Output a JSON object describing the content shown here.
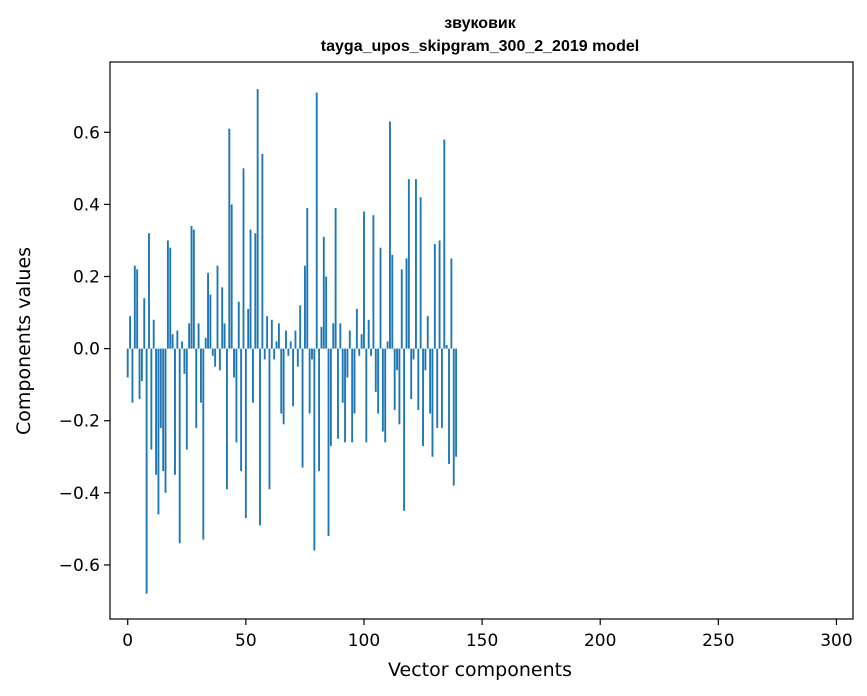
{
  "chart_data": {
    "type": "bar",
    "title": "звуковик",
    "subtitle": "tayga_upos_skipgram_300_2_2019 model",
    "xlabel": "Vector components",
    "ylabel": "Components values",
    "xlim": [
      -7.5,
      307
    ],
    "ylim": [
      -0.75,
      0.795
    ],
    "xticks": [
      0,
      50,
      100,
      150,
      200,
      250,
      300
    ],
    "yticks": [
      -0.6,
      -0.4,
      -0.2,
      0.0,
      0.2,
      0.4,
      0.6
    ],
    "xtick_labels": [
      "0",
      "50",
      "100",
      "150",
      "200",
      "250",
      "300"
    ],
    "ytick_labels": [
      "−0.6",
      "−0.4",
      "−0.2",
      "0.0",
      "0.2",
      "0.4",
      "0.6"
    ],
    "color": "#1f77b4",
    "grid": false,
    "values": [
      -0.08,
      0.09,
      -0.15,
      0.23,
      0.22,
      -0.14,
      -0.09,
      0.14,
      -0.68,
      0.32,
      -0.28,
      0.08,
      -0.35,
      -0.46,
      -0.22,
      -0.34,
      -0.4,
      0.3,
      0.28,
      0.04,
      -0.35,
      0.05,
      -0.54,
      0.02,
      -0.07,
      -0.28,
      0.07,
      0.34,
      0.33,
      -0.22,
      0.07,
      -0.15,
      -0.53,
      0.03,
      0.21,
      0.15,
      -0.02,
      -0.05,
      0.23,
      -0.06,
      0.17,
      0.07,
      -0.39,
      0.61,
      0.4,
      -0.08,
      -0.26,
      0.13,
      -0.34,
      0.5,
      -0.47,
      0.11,
      0.33,
      -0.15,
      0.32,
      0.72,
      -0.49,
      0.54,
      -0.03,
      0.09,
      -0.39,
      0.08,
      -0.03,
      0.02,
      0.07,
      -0.18,
      -0.21,
      0.05,
      -0.02,
      0.02,
      -0.16,
      0.05,
      -0.05,
      0.12,
      -0.33,
      0.23,
      0.39,
      -0.18,
      -0.03,
      -0.56,
      0.71,
      -0.34,
      0.06,
      0.31,
      0.2,
      -0.52,
      -0.27,
      0.07,
      0.39,
      -0.25,
      0.07,
      -0.15,
      -0.26,
      -0.08,
      0.05,
      -0.26,
      -0.18,
      0.11,
      -0.02,
      0.04,
      0.38,
      -0.26,
      0.08,
      -0.02,
      0.37,
      -0.12,
      -0.18,
      0.28,
      -0.23,
      -0.26,
      0.02,
      0.63,
      0.26,
      -0.17,
      -0.06,
      -0.21,
      0.22,
      -0.45,
      0.25,
      0.47,
      -0.14,
      -0.03,
      0.47,
      -0.17,
      0.42,
      -0.27,
      -0.06,
      0.09,
      -0.18,
      -0.3,
      0.29,
      -0.22,
      0.3,
      -0.22,
      0.58,
      0.01,
      -0.32,
      0.25,
      -0.38,
      -0.3
    ]
  }
}
